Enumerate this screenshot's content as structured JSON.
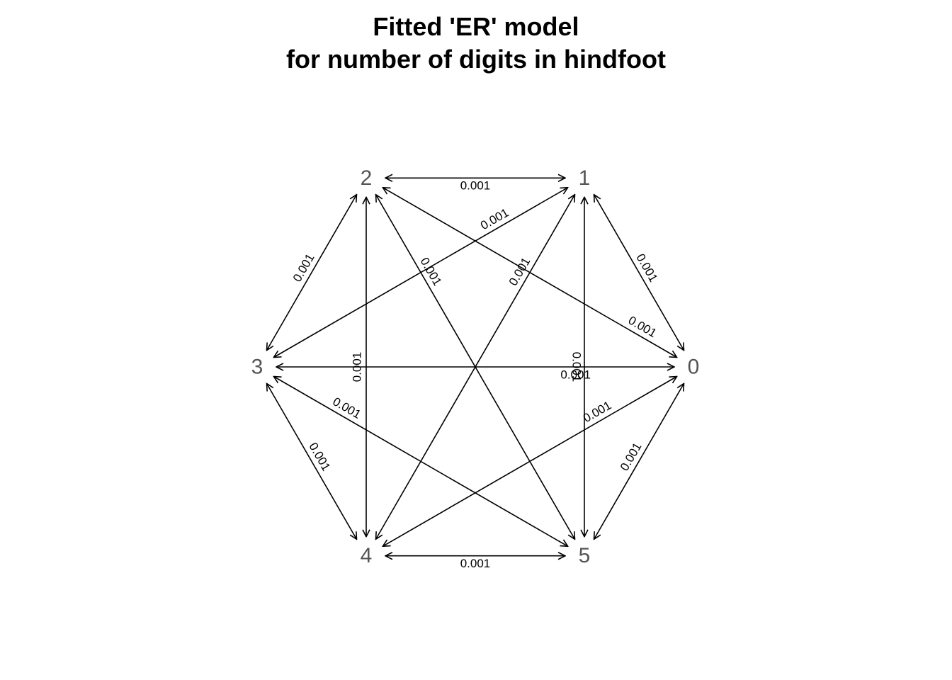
{
  "title": {
    "line1": "Fitted 'ER' model",
    "line2": "for number of digits in hindfoot"
  },
  "nodes": [
    "0",
    "1",
    "2",
    "3",
    "4",
    "5"
  ],
  "edges": [
    {
      "from": "2",
      "to": "1",
      "label": "0.001"
    },
    {
      "from": "1",
      "to": "3",
      "label": "0.001"
    },
    {
      "from": "1",
      "to": "0",
      "label": "0.001"
    },
    {
      "from": "2",
      "to": "3",
      "label": "0.001"
    },
    {
      "from": "2",
      "to": "4",
      "label": "0.001"
    },
    {
      "from": "2",
      "to": "5",
      "label": "0.001"
    },
    {
      "from": "1",
      "to": "4",
      "label": "0.001"
    },
    {
      "from": "1",
      "to": "5",
      "label": "0.001"
    },
    {
      "from": "2",
      "to": "0",
      "label": "0.001"
    },
    {
      "from": "3",
      "to": "0",
      "label": "0.001"
    },
    {
      "from": "0",
      "to": "4",
      "label": "0.001"
    },
    {
      "from": "3",
      "to": "5",
      "label": "0.001"
    },
    {
      "from": "0",
      "to": "5",
      "label": "0.001"
    },
    {
      "from": "3",
      "to": "4",
      "label": "0.001"
    },
    {
      "from": "4",
      "to": "5",
      "label": "0.001"
    }
  ],
  "edge_color": "#000000",
  "node_label_color": "#555555"
}
